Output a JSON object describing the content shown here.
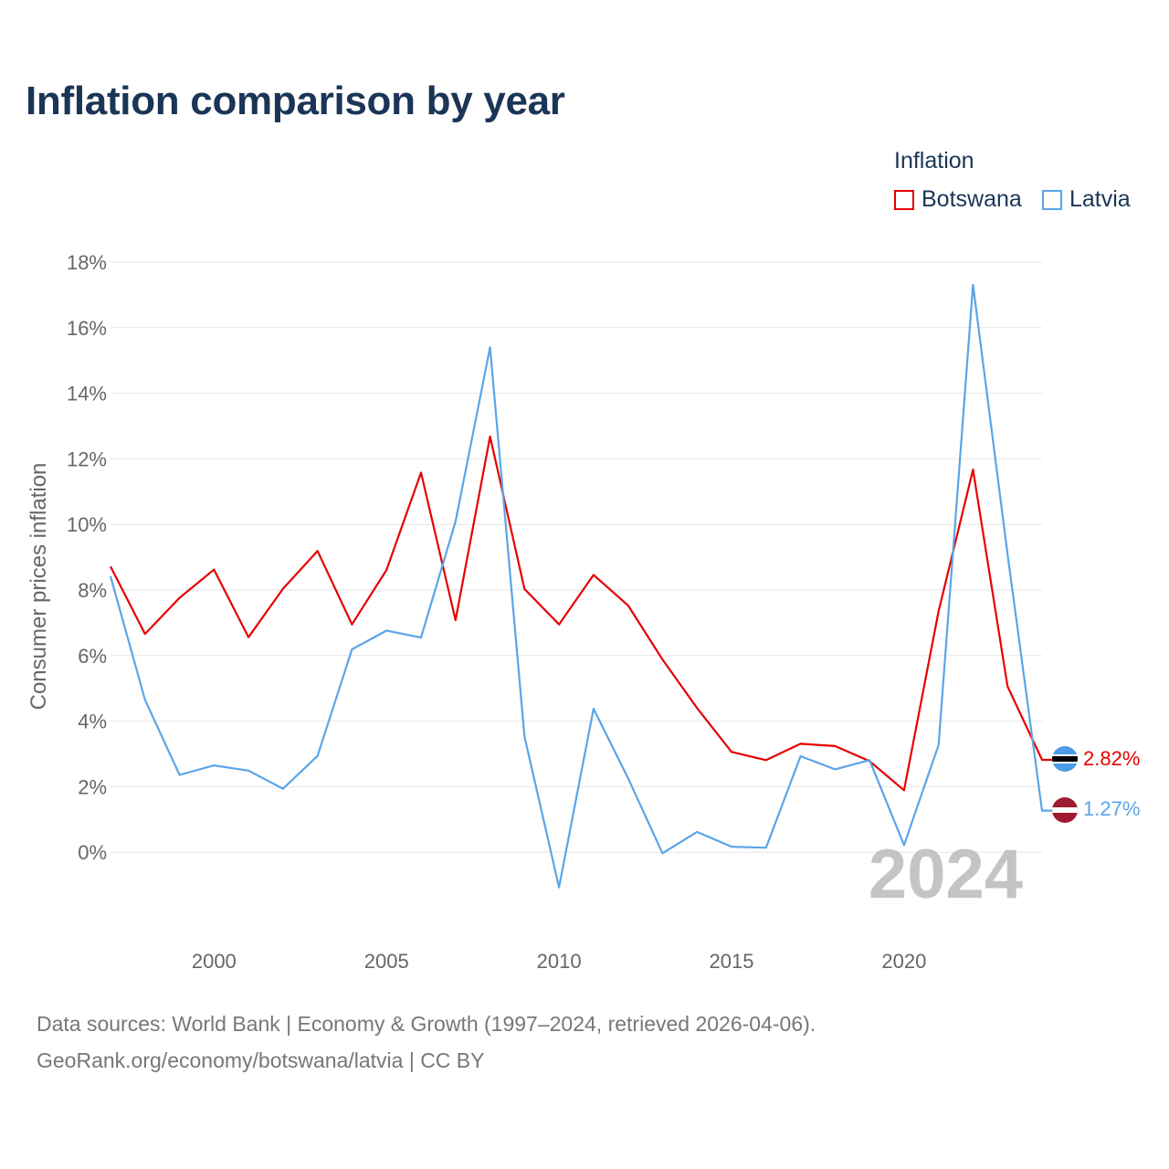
{
  "title": "Inflation comparison by year",
  "legend": {
    "title": "Inflation",
    "items": [
      {
        "label": "Botswana",
        "color": "#e60000"
      },
      {
        "label": "Latvia",
        "color": "#5aa5e8"
      }
    ]
  },
  "year_watermark": "2024",
  "end_labels": {
    "botswana": "2.82%",
    "latvia": "1.27%"
  },
  "source": {
    "line1": "Data sources: World Bank | Economy & Growth (1997–2024, retrieved 2026-04-06).",
    "line2": "GeoRank.org/economy/botswana/latvia | CC BY"
  },
  "chart_data": {
    "type": "line",
    "title": "Inflation comparison by year",
    "xlabel": "",
    "ylabel": "Consumer prices inflation",
    "x": [
      1997,
      1998,
      1999,
      2000,
      2001,
      2002,
      2003,
      2004,
      2005,
      2006,
      2007,
      2008,
      2009,
      2010,
      2011,
      2012,
      2013,
      2014,
      2015,
      2016,
      2017,
      2018,
      2019,
      2020,
      2021,
      2022,
      2023,
      2024
    ],
    "xlim": [
      1997,
      2024
    ],
    "ylim": [
      -2,
      18
    ],
    "xticks": [
      2000,
      2005,
      2010,
      2015,
      2020
    ],
    "yticks": [
      0,
      2,
      4,
      6,
      8,
      10,
      12,
      14,
      16,
      18
    ],
    "ytick_labels": [
      "0%",
      "2%",
      "4%",
      "6%",
      "8%",
      "10%",
      "12%",
      "14%",
      "16%",
      "18%"
    ],
    "grid": true,
    "legend_position": "top-right",
    "series": [
      {
        "name": "Botswana",
        "color": "#e60000",
        "values": [
          8.72,
          6.66,
          7.76,
          8.62,
          6.56,
          8.04,
          9.19,
          6.95,
          8.61,
          11.58,
          7.08,
          12.68,
          8.03,
          6.95,
          8.46,
          7.53,
          5.88,
          4.4,
          3.06,
          2.81,
          3.31,
          3.24,
          2.78,
          1.89,
          7.35,
          11.67,
          5.06,
          2.82
        ]
      },
      {
        "name": "Latvia",
        "color": "#5aa5e8",
        "values": [
          8.42,
          4.65,
          2.36,
          2.65,
          2.49,
          1.94,
          2.94,
          6.19,
          6.76,
          6.55,
          10.09,
          15.4,
          3.53,
          -1.07,
          4.38,
          2.26,
          -0.03,
          0.62,
          0.17,
          0.14,
          2.93,
          2.53,
          2.81,
          0.22,
          3.27,
          17.31,
          9.1,
          1.27
        ]
      }
    ]
  }
}
